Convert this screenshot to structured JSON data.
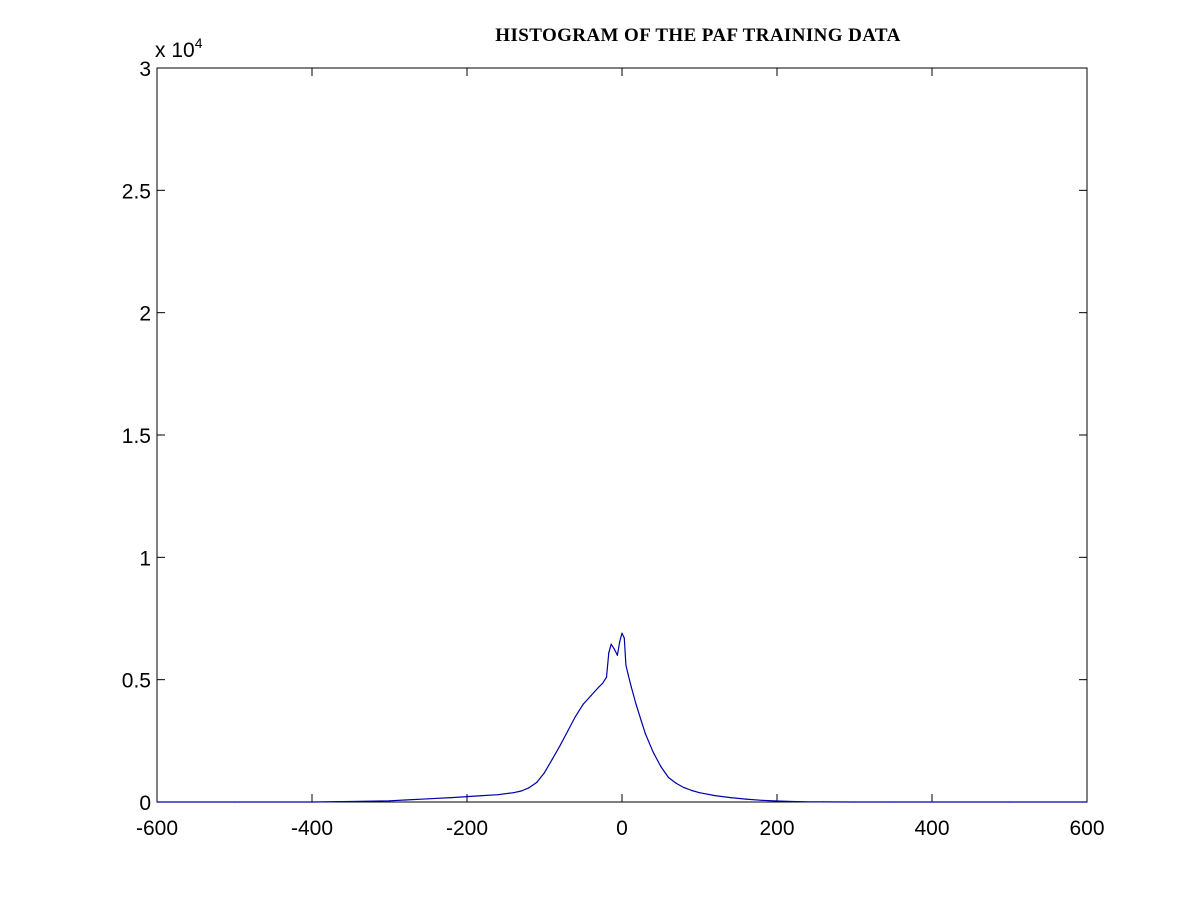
{
  "chart_data": {
    "type": "line",
    "title": "HISTOGRAM OF THE PAF TRAINING DATA",
    "xlabel": "",
    "ylabel": "",
    "xlim": [
      -600,
      600
    ],
    "ylim": [
      0,
      30000
    ],
    "x_ticks": [
      "-600",
      "-400",
      "-200",
      "0",
      "200",
      "400",
      "600"
    ],
    "x_tick_values": [
      -600,
      -400,
      -200,
      0,
      200,
      400,
      600
    ],
    "y_ticks": [
      "0",
      "0.5",
      "1",
      "1.5",
      "2",
      "2.5",
      "3"
    ],
    "y_tick_values": [
      0,
      5000,
      10000,
      15000,
      20000,
      25000,
      30000
    ],
    "y_multiplier_base": "x 10",
    "y_multiplier_exponent": "4",
    "grid": false,
    "line_color": "#0000aa",
    "series": [
      {
        "x": [
          -600,
          -500,
          -400,
          -350,
          -300,
          -280,
          -250,
          -220,
          -200,
          -180,
          -160,
          -140,
          -130,
          -120,
          -110,
          -100,
          -90,
          -80,
          -70,
          -60,
          -50,
          -40,
          -30,
          -25,
          -20,
          -17,
          -14,
          -10,
          -6,
          -3,
          0,
          3,
          5,
          8,
          12,
          18,
          25,
          30,
          40,
          50,
          60,
          70,
          80,
          90,
          100,
          120,
          140,
          160,
          180,
          200,
          220,
          240,
          260,
          300,
          350,
          400,
          500,
          600
        ],
        "values": [
          0,
          0,
          0,
          20,
          50,
          80,
          130,
          180,
          220,
          260,
          300,
          380,
          450,
          580,
          800,
          1200,
          1750,
          2300,
          2900,
          3500,
          4000,
          4350,
          4700,
          4850,
          5100,
          6100,
          6450,
          6250,
          6000,
          6550,
          6900,
          6700,
          5600,
          5200,
          4700,
          4000,
          3300,
          2800,
          2050,
          1450,
          1000,
          760,
          590,
          470,
          380,
          260,
          180,
          120,
          70,
          40,
          20,
          10,
          5,
          0,
          0,
          0,
          0,
          0
        ]
      }
    ]
  }
}
